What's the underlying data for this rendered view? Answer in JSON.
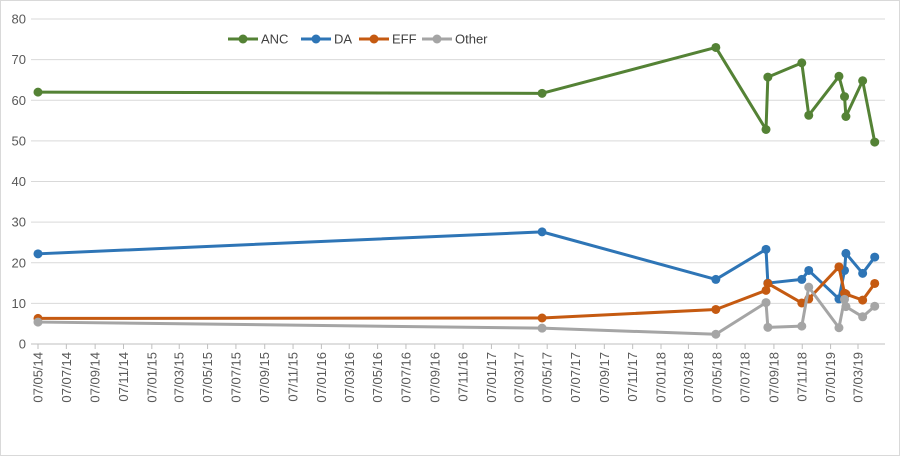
{
  "chart_data": {
    "type": "line",
    "title": "",
    "xlabel": "",
    "ylabel": "",
    "ylim": [
      0,
      80
    ],
    "yticks": [
      0,
      10,
      20,
      30,
      40,
      50,
      60,
      70,
      80
    ],
    "grid": "horizontal",
    "legend_position": "top",
    "x_tick_labels": [
      "07/05/14",
      "07/07/14",
      "07/09/14",
      "07/11/14",
      "07/01/15",
      "07/03/15",
      "07/05/15",
      "07/07/15",
      "07/09/15",
      "07/11/15",
      "07/01/16",
      "07/03/16",
      "07/05/16",
      "07/07/16",
      "07/09/16",
      "07/11/16",
      "07/01/17",
      "07/03/17",
      "07/05/17",
      "07/07/17",
      "07/09/17",
      "07/11/17",
      "07/01/18",
      "07/03/18",
      "07/05/18",
      "07/07/18",
      "07/09/18",
      "07/11/18",
      "07/01/19",
      "07/03/19"
    ],
    "x": [
      "07/05/14",
      "26/04/17",
      "05/05/18",
      "21/08/18",
      "25/08/18",
      "06/11/18",
      "21/11/18",
      "25/01/19",
      "06/02/19",
      "09/02/19",
      "17/03/19",
      "12/04/19"
    ],
    "series": [
      {
        "name": "ANC",
        "color": "#548235",
        "values": [
          62.0,
          61.7,
          73.0,
          52.8,
          65.7,
          69.2,
          56.3,
          65.9,
          60.9,
          56.0,
          64.8,
          49.7
        ]
      },
      {
        "name": "DA",
        "color": "#2e75b6",
        "values": [
          22.2,
          27.6,
          15.9,
          23.3,
          15.0,
          15.9,
          18.1,
          11.1,
          18.1,
          22.3,
          17.4,
          21.4
        ]
      },
      {
        "name": "EFF",
        "color": "#c55a11",
        "values": [
          6.3,
          6.4,
          8.5,
          13.2,
          14.9,
          10.1,
          11.1,
          19.0,
          12.5,
          12.3,
          10.8,
          14.9
        ]
      },
      {
        "name": "Other",
        "color": "#a5a5a5",
        "values": [
          5.4,
          3.9,
          2.4,
          10.2,
          4.1,
          4.4,
          14.0,
          4.0,
          11.0,
          9.2,
          6.7,
          9.3
        ]
      }
    ]
  }
}
